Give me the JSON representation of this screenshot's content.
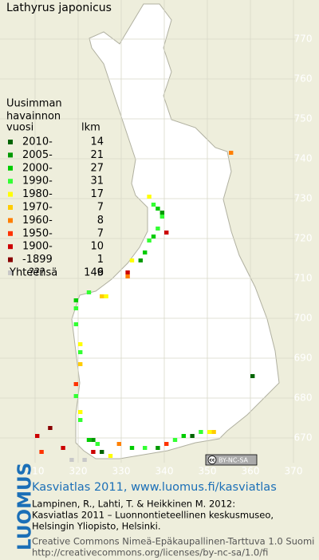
{
  "title": "Lathyrus japonicus",
  "legend": {
    "heading": [
      "Uusimman",
      "havainnon"
    ],
    "col_year": "vuosi",
    "col_count": "lkm",
    "items": [
      {
        "label": "2010-",
        "count": 14,
        "color": "#006400"
      },
      {
        "label": "2005-",
        "count": 21,
        "color": "#009900"
      },
      {
        "label": "2000-",
        "count": 27,
        "color": "#00cc00"
      },
      {
        "label": "1990-",
        "count": 31,
        "color": "#33ff33"
      },
      {
        "label": "1980-",
        "count": 17,
        "color": "#ffff00"
      },
      {
        "label": "1970-",
        "count": 7,
        "color": "#ffcc00"
      },
      {
        "label": "1960-",
        "count": 8,
        "color": "#ff7f00"
      },
      {
        "label": "1950-",
        "count": 7,
        "color": "#ff3300"
      },
      {
        "label": "1900-",
        "count": 10,
        "color": "#cc0000"
      },
      {
        "label": "-1899",
        "count": 1,
        "color": "#880000"
      },
      {
        "label": "???",
        "count": 6,
        "color": "#c8c8c8"
      }
    ],
    "total_label": "Yhteensä",
    "total": 149
  },
  "map": {
    "xticks": [
      310,
      320,
      330,
      340,
      350,
      360,
      370
    ],
    "yticks": [
      670,
      680,
      690,
      700,
      710,
      720,
      730,
      740,
      750,
      760,
      770
    ],
    "records": [
      [
        355,
        741,
        6
      ],
      [
        336,
        730,
        4
      ],
      [
        337,
        728,
        3
      ],
      [
        338,
        727,
        2
      ],
      [
        339,
        726,
        1
      ],
      [
        339,
        725,
        3
      ],
      [
        338,
        722,
        3
      ],
      [
        340,
        721,
        8
      ],
      [
        337,
        720,
        2
      ],
      [
        336,
        719,
        3
      ],
      [
        335,
        716,
        2
      ],
      [
        334,
        714,
        1
      ],
      [
        332,
        714,
        4
      ],
      [
        331,
        711,
        8
      ],
      [
        331,
        710,
        6
      ],
      [
        326,
        705,
        4
      ],
      [
        325,
        705,
        5
      ],
      [
        322,
        706,
        3
      ],
      [
        319,
        704,
        2
      ],
      [
        319,
        702,
        3
      ],
      [
        319,
        698,
        3
      ],
      [
        320,
        693,
        4
      ],
      [
        320,
        691,
        3
      ],
      [
        320,
        688,
        5
      ],
      [
        319,
        683,
        7
      ],
      [
        319,
        680,
        3
      ],
      [
        320,
        676,
        4
      ],
      [
        320,
        674,
        3
      ],
      [
        360,
        685,
        0
      ],
      [
        322,
        669,
        2
      ],
      [
        323,
        669,
        1
      ],
      [
        324,
        668,
        3
      ],
      [
        325,
        666,
        0
      ],
      [
        327,
        665,
        4
      ],
      [
        323,
        666,
        8
      ],
      [
        321,
        664,
        10
      ],
      [
        329,
        668,
        6
      ],
      [
        332,
        667,
        2
      ],
      [
        335,
        667,
        3
      ],
      [
        338,
        667,
        1
      ],
      [
        340,
        668,
        7
      ],
      [
        342,
        669,
        3
      ],
      [
        344,
        670,
        2
      ],
      [
        346,
        670,
        0
      ],
      [
        348,
        671,
        3
      ],
      [
        350,
        671,
        4
      ],
      [
        351,
        671,
        5
      ],
      [
        310,
        670,
        8
      ],
      [
        313,
        672,
        9
      ],
      [
        311,
        666,
        7
      ],
      [
        316,
        667,
        8
      ],
      [
        318,
        664,
        10
      ]
    ]
  },
  "footer": {
    "logo": "LUOMUS",
    "site": "Kasviatlas 2011, www.luomus.fi/kasviatlas",
    "citation": [
      "Lampinen, R., Lahti, T. & Heikkinen M. 2012:",
      "Kasviatlas 2011 – Luonnontieteellinen keskusmuseo,",
      "Helsingin Yliopisto, Helsinki."
    ],
    "license": [
      "Creative Commons Nimeä-Epäkaupallinen-Tarttuva 1.0 Suomi",
      "http://creativecommons.org/licenses/by-nc-sa/1.0/fi"
    ],
    "badge": [
      "cc",
      "BY-NC-SA"
    ]
  }
}
